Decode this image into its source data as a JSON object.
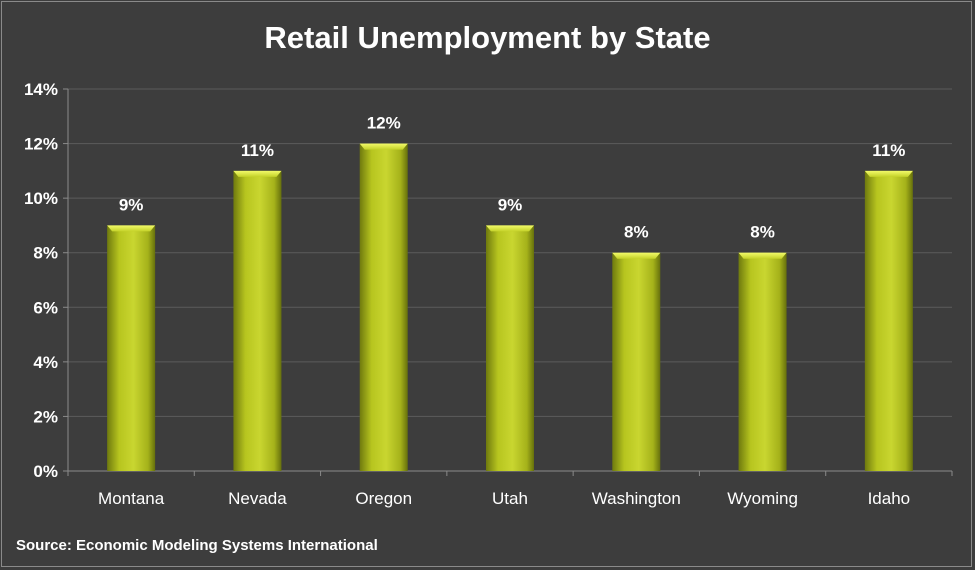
{
  "chart_data": {
    "type": "bar",
    "title": "Retail Unemployment by State",
    "categories": [
      "Montana",
      "Nevada",
      "Oregon",
      "Utah",
      "Washington",
      "Wyoming",
      "Idaho"
    ],
    "values": [
      9,
      11,
      12,
      9,
      8,
      8,
      11
    ],
    "data_labels": [
      "9%",
      "11%",
      "12%",
      "9%",
      "8%",
      "8%",
      "11%"
    ],
    "ylim": [
      0,
      14
    ],
    "yticks": [
      0,
      2,
      4,
      6,
      8,
      10,
      12,
      14
    ],
    "ytick_labels": [
      "0%",
      "2%",
      "4%",
      "6%",
      "8%",
      "10%",
      "12%",
      "14%"
    ],
    "xlabel": "",
    "ylabel": "",
    "grid": true,
    "source": "Source:  Economic Modeling Systems International",
    "colors": {
      "background": "#3d3d3d",
      "bar": "#b7c51f",
      "grid": "#5c5c5c",
      "text": "#ffffff"
    }
  }
}
